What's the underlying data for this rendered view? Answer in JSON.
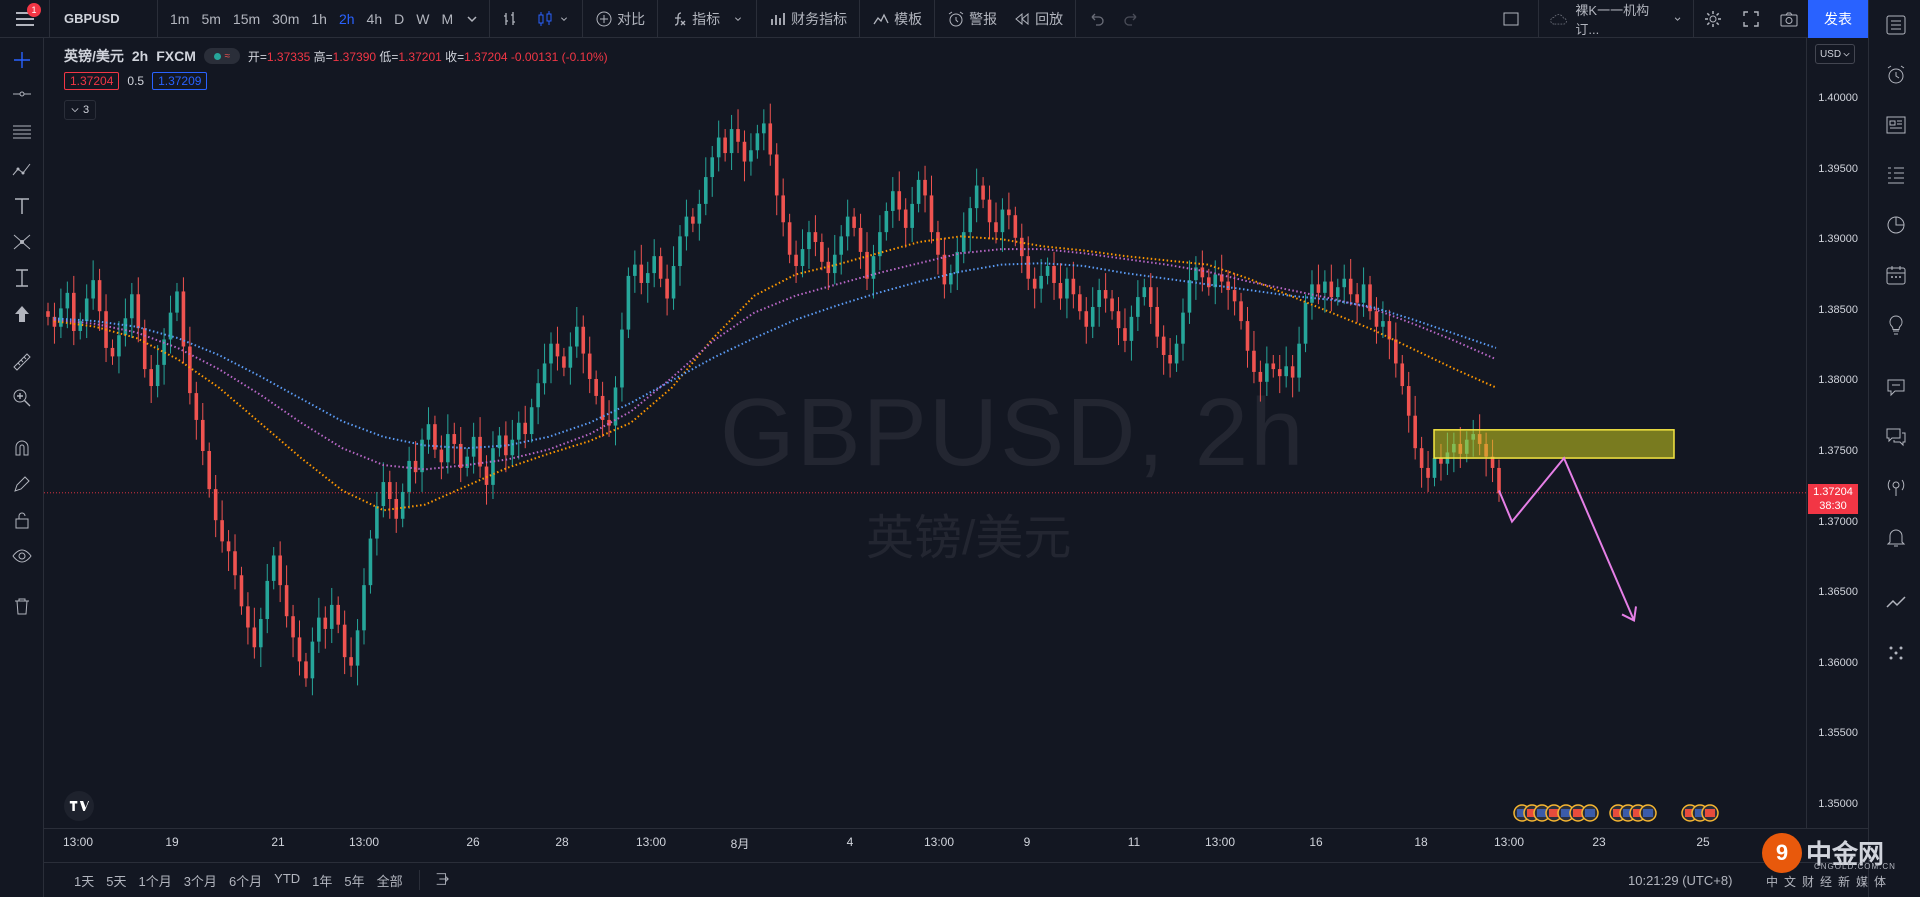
{
  "topbar": {
    "notification_count": "1",
    "symbol": "GBPUSD",
    "intervals": [
      "1m",
      "5m",
      "15m",
      "30m",
      "1h",
      "2h",
      "4h",
      "D",
      "W",
      "M"
    ],
    "active_interval": "2h",
    "compare_label": "对比",
    "indicators_label": "指标",
    "financials_label": "财务指标",
    "templates_label": "模板",
    "alerts_label": "警报",
    "replay_label": "回放",
    "layout_name": "裸K一一机构订...",
    "publish_label": "发表"
  },
  "legend": {
    "title": "英镑/美元",
    "interval": "2h",
    "exchange": "FXCM",
    "open_label": "开=",
    "open": "1.37335",
    "high_label": "高=",
    "high": "1.37390",
    "low_label": "低=",
    "low": "1.37201",
    "close_label": "收=",
    "close": "1.37204",
    "change": "-0.00131 (-0.10%)",
    "bid": "1.37204",
    "spread": "0.5",
    "ask": "1.37209",
    "indicator_count": "3"
  },
  "watermark": {
    "symbol": "GBPUSD, 2h",
    "name": "英镑/美元"
  },
  "price_axis": {
    "currency": "USD",
    "labels": [
      "1.40000",
      "1.39500",
      "1.39000",
      "1.38500",
      "1.38000",
      "1.37500",
      "1.37000",
      "1.36500",
      "1.36000",
      "1.35500",
      "1.35000"
    ],
    "last_price": "1.37204",
    "countdown": "38:30"
  },
  "time_axis": {
    "labels": [
      "13:00",
      "19",
      "21",
      "13:00",
      "26",
      "28",
      "13:00",
      "8月",
      "4",
      "13:00",
      "9",
      "11",
      "13:00",
      "16",
      "18",
      "13:00",
      "23",
      "25"
    ]
  },
  "bottom": {
    "ranges": [
      "1天",
      "5天",
      "1个月",
      "3个月",
      "6个月",
      "YTD",
      "1年",
      "5年",
      "全部"
    ],
    "clock": "10:21:29 (UTC+8)"
  },
  "brand": {
    "name": "中金网",
    "url": "CNGOLD.COM.CN",
    "tagline": "中文财经新媒体"
  },
  "chart_data": {
    "type": "candlestick",
    "ylim": [
      1.35,
      1.4
    ],
    "closes": [
      1.3845,
      1.3838,
      1.3851,
      1.3862,
      1.3835,
      1.3842,
      1.3858,
      1.3871,
      1.3849,
      1.3823,
      1.3817,
      1.3832,
      1.3844,
      1.3861,
      1.3837,
      1.3808,
      1.3796,
      1.3811,
      1.3829,
      1.3848,
      1.3863,
      1.3824,
      1.3791,
      1.3772,
      1.375,
      1.3723,
      1.3701,
      1.3686,
      1.3679,
      1.3662,
      1.364,
      1.3625,
      1.3611,
      1.3631,
      1.3658,
      1.3676,
      1.3655,
      1.3633,
      1.3618,
      1.3601,
      1.3589,
      1.3615,
      1.3632,
      1.3624,
      1.3641,
      1.3627,
      1.3604,
      1.3598,
      1.3623,
      1.3655,
      1.3688,
      1.3711,
      1.3728,
      1.3716,
      1.3702,
      1.3721,
      1.3743,
      1.3735,
      1.3758,
      1.3769,
      1.3751,
      1.3742,
      1.3762,
      1.3755,
      1.3738,
      1.3746,
      1.376,
      1.3739,
      1.3726,
      1.3752,
      1.3761,
      1.3747,
      1.3758,
      1.377,
      1.3762,
      1.3781,
      1.3798,
      1.3812,
      1.3826,
      1.3817,
      1.3809,
      1.3824,
      1.3838,
      1.3819,
      1.3801,
      1.3789,
      1.3772,
      1.3768,
      1.3795,
      1.3836,
      1.3874,
      1.3882,
      1.3869,
      1.3876,
      1.3888,
      1.3872,
      1.3858,
      1.3881,
      1.3902,
      1.3916,
      1.3911,
      1.3925,
      1.3944,
      1.3958,
      1.3972,
      1.3961,
      1.3978,
      1.3969,
      1.3955,
      1.3963,
      1.3975,
      1.3982,
      1.396,
      1.3931,
      1.3912,
      1.3889,
      1.3881,
      1.3893,
      1.3905,
      1.3898,
      1.3884,
      1.3876,
      1.3889,
      1.3902,
      1.3916,
      1.3908,
      1.3891,
      1.3872,
      1.3888,
      1.3905,
      1.392,
      1.3934,
      1.3921,
      1.3908,
      1.3925,
      1.3942,
      1.3931,
      1.3905,
      1.3889,
      1.3868,
      1.3876,
      1.3891,
      1.3905,
      1.3922,
      1.3938,
      1.3928,
      1.3912,
      1.3905,
      1.3921,
      1.3917,
      1.3901,
      1.3888,
      1.3872,
      1.3865,
      1.3874,
      1.3881,
      1.3869,
      1.3858,
      1.3872,
      1.3861,
      1.3849,
      1.3838,
      1.3852,
      1.3864,
      1.3858,
      1.3849,
      1.3837,
      1.3828,
      1.3845,
      1.3859,
      1.3866,
      1.3852,
      1.3831,
      1.3818,
      1.3812,
      1.3826,
      1.3848,
      1.3871,
      1.388,
      1.3873,
      1.3866,
      1.3875,
      1.387,
      1.3864,
      1.3856,
      1.3842,
      1.3821,
      1.3806,
      1.3799,
      1.3812,
      1.3808,
      1.3803,
      1.381,
      1.3802,
      1.3826,
      1.3855,
      1.3868,
      1.3862,
      1.387,
      1.3859,
      1.3866,
      1.3872,
      1.3861,
      1.3855,
      1.3868,
      1.3849,
      1.3838,
      1.3842,
      1.3829,
      1.3812,
      1.3796,
      1.3775,
      1.3752,
      1.3738,
      1.3731,
      1.3745,
      1.3741,
      1.3749,
      1.3755,
      1.3748,
      1.3758,
      1.3762,
      1.3755,
      1.3746,
      1.3738,
      1.372
    ],
    "ma_lines": [
      {
        "name": "",
        "color": "#ff9800",
        "values": [
          1.3842,
          1.3838,
          1.383,
          1.3815,
          1.3795,
          1.377,
          1.3745,
          1.3722,
          1.3708,
          1.3712,
          1.3725,
          1.3738,
          1.3748,
          1.3757,
          1.377,
          1.3795,
          1.383,
          1.386,
          1.3875,
          1.3882,
          1.389,
          1.3898,
          1.3902,
          1.39,
          1.3895,
          1.3892,
          1.3888,
          1.3885,
          1.3882,
          1.3872,
          1.386,
          1.3848,
          1.3836,
          1.3822,
          1.3808,
          1.3795
        ]
      },
      {
        "name": "",
        "color": "#ba68c8",
        "values": [
          1.3843,
          1.384,
          1.3834,
          1.3823,
          1.3808,
          1.379,
          1.377,
          1.3752,
          1.374,
          1.3737,
          1.374,
          1.3744,
          1.3751,
          1.3762,
          1.3778,
          1.3802,
          1.3828,
          1.3848,
          1.386,
          1.3868,
          1.3876,
          1.3883,
          1.389,
          1.3893,
          1.3893,
          1.389,
          1.3886,
          1.3882,
          1.3877,
          1.387,
          1.3864,
          1.3858,
          1.3851,
          1.384,
          1.3828,
          1.3815
        ]
      },
      {
        "name": "",
        "color": "#5b9cf6",
        "values": [
          1.3844,
          1.3842,
          1.3838,
          1.383,
          1.3818,
          1.3803,
          1.3787,
          1.3771,
          1.376,
          1.3754,
          1.3752,
          1.3754,
          1.376,
          1.377,
          1.3784,
          1.38,
          1.3816,
          1.383,
          1.3843,
          1.3853,
          1.3862,
          1.387,
          1.3877,
          1.3882,
          1.3883,
          1.3881,
          1.3876,
          1.3872,
          1.3868,
          1.3864,
          1.386,
          1.3857,
          1.3852,
          1.3843,
          1.3833,
          1.3823
        ]
      }
    ],
    "zone": {
      "x_bar": [
        198,
        232
      ],
      "y": [
        1.3745,
        1.3765
      ]
    },
    "projection": [
      [
        1.3722
      ],
      [
        1.37
      ],
      [
        1.3745
      ],
      [
        1.363
      ]
    ]
  }
}
